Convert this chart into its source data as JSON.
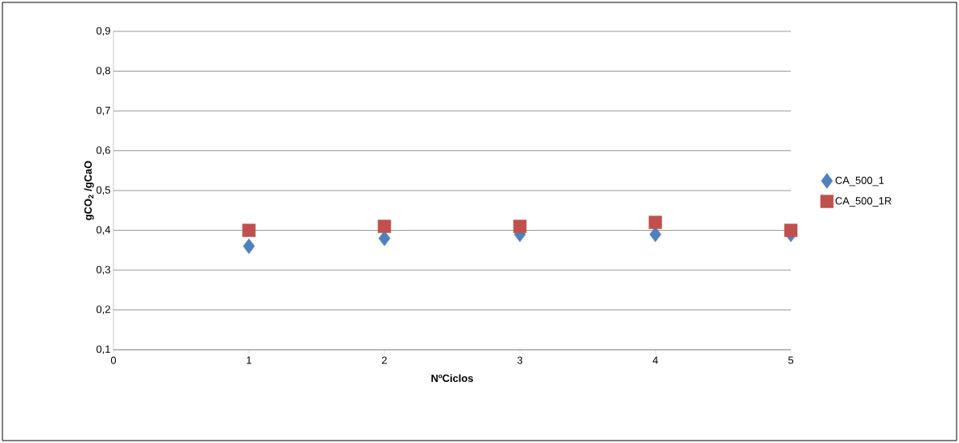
{
  "chart_data": {
    "type": "scatter",
    "xlabel": "NºCiclos",
    "ylabel": "gCO$_{2}$ /gCaO",
    "x": [
      1,
      2,
      3,
      4,
      5
    ],
    "series": [
      {
        "name": "CA_500_1",
        "color": "#4f81bd",
        "marker": "diamond",
        "values": [
          0.36,
          0.38,
          0.39,
          0.39,
          0.39
        ]
      },
      {
        "name": "CA_500_1R",
        "color": "#c0504d",
        "marker": "square",
        "values": [
          0.4,
          0.41,
          0.41,
          0.42,
          0.4
        ]
      }
    ],
    "xlim": [
      0,
      5
    ],
    "xticks": [
      0,
      1,
      2,
      3,
      4,
      5
    ],
    "ylim": [
      0.1,
      0.9
    ],
    "yticks": [
      {
        "value": 0.1,
        "label": "0,1"
      },
      {
        "value": 0.2,
        "label": "0,2"
      },
      {
        "value": 0.3,
        "label": "0,3"
      },
      {
        "value": 0.4,
        "label": "0,4"
      },
      {
        "value": 0.5,
        "label": "0,5"
      },
      {
        "value": 0.6,
        "label": "0,6"
      },
      {
        "value": 0.7,
        "label": "0,7"
      },
      {
        "value": 0.8,
        "label": "0,8"
      },
      {
        "value": 0.9,
        "label": "0,9"
      }
    ],
    "grid": "y",
    "legend": "right"
  }
}
